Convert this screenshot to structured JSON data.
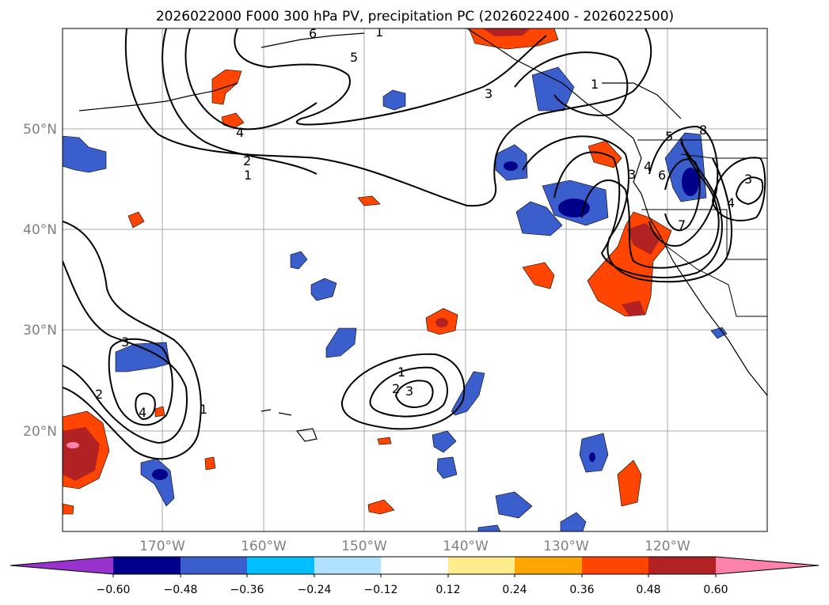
{
  "title": "2026022000 F000 300 hPa PV, precipitation PC (2026022400 - 2026022500)",
  "map": {
    "lat_labels": [
      "50°N",
      "40°N",
      "30°N",
      "20°N"
    ],
    "lon_labels": [
      "170°W",
      "160°W",
      "150°W",
      "140°W",
      "130°W",
      "120°W"
    ],
    "contour_labels": [
      {
        "id": "cl-6-top",
        "text": "6"
      },
      {
        "id": "cl-1-top",
        "text": "1"
      },
      {
        "id": "cl-5-n",
        "text": "5"
      },
      {
        "id": "cl-3-n",
        "text": "3"
      },
      {
        "id": "cl-1-ne",
        "text": "1"
      },
      {
        "id": "cl-4-nw",
        "text": "4"
      },
      {
        "id": "cl-2-mid",
        "text": "2"
      },
      {
        "id": "cl-1-mid",
        "text": "1"
      },
      {
        "id": "cl-3-sw",
        "text": "3"
      },
      {
        "id": "cl-2-sw",
        "text": "2"
      },
      {
        "id": "cl-4-sw",
        "text": "4"
      },
      {
        "id": "cl-1-sw",
        "text": "1"
      },
      {
        "id": "cl-1-c",
        "text": "1"
      },
      {
        "id": "cl-2-c",
        "text": "2"
      },
      {
        "id": "cl-3-c",
        "text": "3"
      },
      {
        "id": "cl-3-e",
        "text": "3"
      },
      {
        "id": "cl-4-e",
        "text": "4"
      },
      {
        "id": "cl-6-e",
        "text": "6"
      },
      {
        "id": "cl-5-e",
        "text": "5"
      },
      {
        "id": "cl-8-e",
        "text": "8"
      },
      {
        "id": "cl-7-e",
        "text": "7"
      },
      {
        "id": "cl-3-far",
        "text": "3"
      },
      {
        "id": "cl-4-far",
        "text": "4"
      }
    ]
  },
  "colorbar": {
    "tick_labels": [
      "−0.60",
      "−0.48",
      "−0.36",
      "−0.24",
      "−0.12",
      "0.12",
      "0.24",
      "0.36",
      "0.48",
      "0.60"
    ],
    "colors": [
      "#9932CC",
      "#00008B",
      "#3A5FCD",
      "#00BFFF",
      "#B0E2FF",
      "#FFFFFF",
      "#FFEC8B",
      "#FFA500",
      "#FF4500",
      "#B22222",
      "#FF82AB"
    ]
  }
}
